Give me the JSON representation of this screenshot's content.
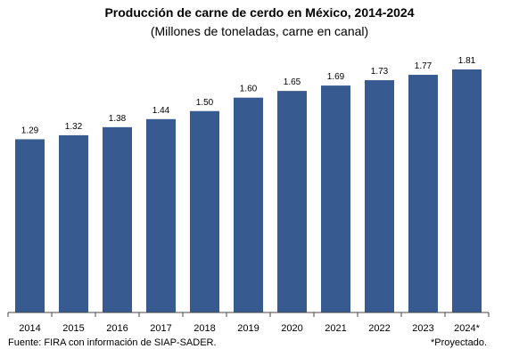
{
  "chart_data": {
    "type": "bar",
    "title": "Producción de carne de cerdo en México, 2014-2024",
    "subtitle": "(Millones de toneladas, carne en canal)",
    "categories": [
      "2014",
      "2015",
      "2016",
      "2017",
      "2018",
      "2019",
      "2020",
      "2021",
      "2022",
      "2023",
      "2024*"
    ],
    "values": [
      1.29,
      1.32,
      1.38,
      1.44,
      1.5,
      1.6,
      1.65,
      1.69,
      1.73,
      1.77,
      1.81
    ],
    "value_labels": [
      "1.29",
      "1.32",
      "1.38",
      "1.44",
      "1.50",
      "1.60",
      "1.65",
      "1.69",
      "1.73",
      "1.77",
      "1.81"
    ],
    "ylim": [
      0,
      1.81
    ],
    "grid": false,
    "legend": "none",
    "bar_color": "#375b91",
    "source": "Fuente: FIRA con información de SIAP-SADER.",
    "note": "*Proyectado."
  }
}
